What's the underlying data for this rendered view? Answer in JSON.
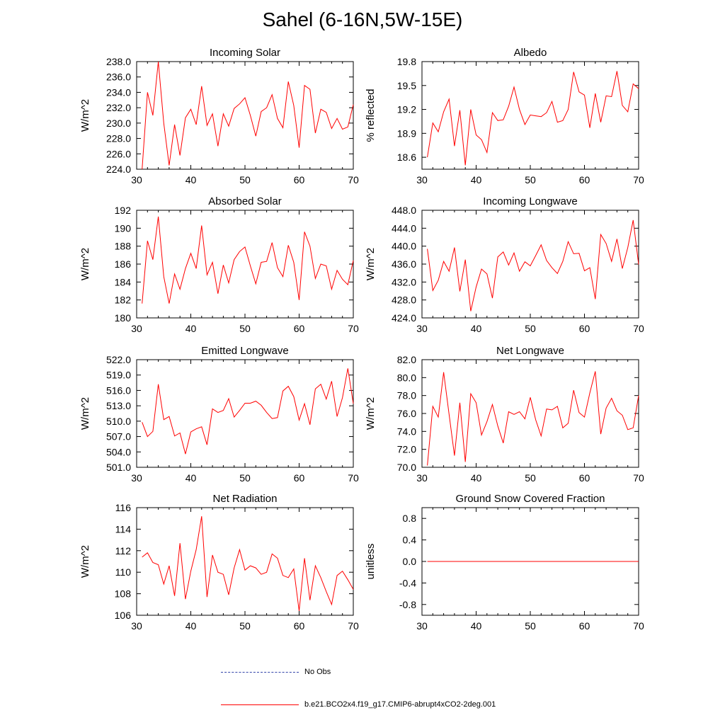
{
  "figure": {
    "title": "Sahel (6-16N,5W-15E)"
  },
  "colors": {
    "series": "#ff0000",
    "obs": "#3344aa",
    "axis": "#000000"
  },
  "legend": {
    "obs_label": "No Obs",
    "model_label": "b.e21.BCO2x4.f19_g17.CMIP6-abrupt4xCO2-2deg.001"
  },
  "chart_data": [
    {
      "type": "line",
      "title": "Incoming Solar",
      "ylabel": "W/m^2",
      "xlim": [
        30,
        70
      ],
      "ylim": [
        224,
        238
      ],
      "xticks": [
        30,
        40,
        50,
        60,
        70
      ],
      "yticks": [
        "224.0",
        "226.0",
        "228.0",
        "230.0",
        "232.0",
        "234.0",
        "236.0",
        "238.0"
      ],
      "x": [
        31,
        32,
        33,
        34,
        35,
        36,
        37,
        38,
        39,
        40,
        41,
        42,
        43,
        44,
        45,
        46,
        47,
        48,
        49,
        50,
        51,
        52,
        53,
        54,
        55,
        56,
        57,
        58,
        59,
        60,
        61,
        62,
        63,
        64,
        65,
        66,
        67,
        68,
        69,
        70
      ],
      "values": [
        224.0,
        234.0,
        231.0,
        238.0,
        230.0,
        224.5,
        229.8,
        225.8,
        230.7,
        231.8,
        229.8,
        234.8,
        229.7,
        231.2,
        227.0,
        231.2,
        229.6,
        231.9,
        232.5,
        233.3,
        231.0,
        228.3,
        231.5,
        232.0,
        233.7,
        230.6,
        229.4,
        235.4,
        232.3,
        226.8,
        234.9,
        234.4,
        228.7,
        231.8,
        231.4,
        229.3,
        230.6,
        229.2,
        229.5,
        232.4
      ],
      "series_name": "b.e21.BCO2x4.f19_g17.CMIP6-abrupt4xCO2-2deg.001"
    },
    {
      "type": "line",
      "title": "Albedo",
      "ylabel": "% reflected",
      "xlim": [
        30,
        70
      ],
      "ylim": [
        18.45,
        19.8
      ],
      "xticks": [
        30,
        40,
        50,
        60,
        70
      ],
      "yticks": [
        "18.6",
        "18.9",
        "19.2",
        "19.5",
        "19.8"
      ],
      "x": [
        31,
        32,
        33,
        34,
        35,
        36,
        37,
        38,
        39,
        40,
        41,
        42,
        43,
        44,
        45,
        46,
        47,
        48,
        49,
        50,
        51,
        52,
        53,
        54,
        55,
        56,
        57,
        58,
        59,
        60,
        61,
        62,
        63,
        64,
        65,
        66,
        67,
        68,
        69,
        70
      ],
      "values": [
        18.6,
        19.03,
        18.92,
        19.17,
        19.33,
        18.74,
        19.19,
        18.5,
        19.2,
        18.88,
        18.82,
        18.66,
        19.16,
        19.06,
        19.07,
        19.24,
        19.48,
        19.2,
        19.01,
        19.13,
        19.12,
        19.11,
        19.16,
        19.3,
        19.04,
        19.06,
        19.2,
        19.67,
        19.42,
        19.38,
        18.97,
        19.4,
        19.04,
        19.37,
        19.36,
        19.68,
        19.25,
        19.17,
        19.52,
        19.46
      ],
      "series_name": "b.e21.BCO2x4.f19_g17.CMIP6-abrupt4xCO2-2deg.001"
    },
    {
      "type": "line",
      "title": "Absorbed Solar",
      "ylabel": "W/m^2",
      "xlim": [
        30,
        70
      ],
      "ylim": [
        180,
        192
      ],
      "xticks": [
        30,
        40,
        50,
        60,
        70
      ],
      "yticks": [
        "180",
        "182",
        "184",
        "186",
        "188",
        "190",
        "192"
      ],
      "x": [
        31,
        32,
        33,
        34,
        35,
        36,
        37,
        38,
        39,
        40,
        41,
        42,
        43,
        44,
        45,
        46,
        47,
        48,
        49,
        50,
        51,
        52,
        53,
        54,
        55,
        56,
        57,
        58,
        59,
        60,
        61,
        62,
        63,
        64,
        65,
        66,
        67,
        68,
        69,
        70
      ],
      "values": [
        181.6,
        188.6,
        186.5,
        191.3,
        184.6,
        181.6,
        184.9,
        183.2,
        185.5,
        187.2,
        185.5,
        190.3,
        184.8,
        186.2,
        182.7,
        185.9,
        183.9,
        186.5,
        187.4,
        187.9,
        185.8,
        183.8,
        186.2,
        186.3,
        188.4,
        185.6,
        184.6,
        188.1,
        186.2,
        182.0,
        189.6,
        188.0,
        184.4,
        186.0,
        185.8,
        183.2,
        185.3,
        184.3,
        183.7,
        186.4
      ],
      "series_name": "b.e21.BCO2x4.f19_g17.CMIP6-abrupt4xCO2-2deg.001"
    },
    {
      "type": "line",
      "title": "Incoming Longwave",
      "ylabel": "W/m^2",
      "xlim": [
        30,
        70
      ],
      "ylim": [
        424,
        448
      ],
      "xticks": [
        30,
        40,
        50,
        60,
        70
      ],
      "yticks": [
        "424.0",
        "428.0",
        "432.0",
        "436.0",
        "440.0",
        "444.0",
        "448.0"
      ],
      "x": [
        31,
        32,
        33,
        34,
        35,
        36,
        37,
        38,
        39,
        40,
        41,
        42,
        43,
        44,
        45,
        46,
        47,
        48,
        49,
        50,
        51,
        52,
        53,
        54,
        55,
        56,
        57,
        58,
        59,
        60,
        61,
        62,
        63,
        64,
        65,
        66,
        67,
        68,
        69,
        70
      ],
      "values": [
        439.4,
        430.1,
        432.4,
        436.6,
        434.4,
        439.7,
        429.9,
        437.0,
        425.5,
        430.9,
        434.9,
        433.8,
        428.4,
        437.6,
        438.7,
        435.8,
        438.5,
        434.4,
        436.5,
        435.6,
        437.9,
        440.3,
        436.8,
        435.2,
        433.9,
        436.6,
        441.0,
        438.3,
        438.4,
        434.5,
        435.2,
        428.2,
        442.6,
        440.6,
        436.6,
        441.6,
        435.0,
        439.7,
        445.8,
        435.9
      ],
      "series_name": "b.e21.BCO2x4.f19_g17.CMIP6-abrupt4xCO2-2deg.001"
    },
    {
      "type": "line",
      "title": "Emitted Longwave",
      "ylabel": "W/m^2",
      "xlim": [
        30,
        70
      ],
      "ylim": [
        501,
        522
      ],
      "xticks": [
        30,
        40,
        50,
        60,
        70
      ],
      "yticks": [
        "501.0",
        "504.0",
        "507.0",
        "510.0",
        "513.0",
        "516.0",
        "519.0",
        "522.0"
      ],
      "x": [
        31,
        32,
        33,
        34,
        35,
        36,
        37,
        38,
        39,
        40,
        41,
        42,
        43,
        44,
        45,
        46,
        47,
        48,
        49,
        50,
        51,
        52,
        53,
        54,
        55,
        56,
        57,
        58,
        59,
        60,
        61,
        62,
        63,
        64,
        65,
        66,
        67,
        68,
        69,
        70
      ],
      "values": [
        509.8,
        507.0,
        508.0,
        517.2,
        510.3,
        510.9,
        507.1,
        507.7,
        503.6,
        507.9,
        508.5,
        508.9,
        505.4,
        512.4,
        511.7,
        512.1,
        514.4,
        510.8,
        512.1,
        513.5,
        513.5,
        513.9,
        513.1,
        511.7,
        510.5,
        510.7,
        515.9,
        516.8,
        514.8,
        510.2,
        513.4,
        509.3,
        516.3,
        517.2,
        514.3,
        517.8,
        510.9,
        514.6,
        520.3,
        513.4
      ],
      "series_name": "b.e21.BCO2x4.f19_g17.CMIP6-abrupt4xCO2-2deg.001"
    },
    {
      "type": "line",
      "title": "Net Longwave",
      "ylabel": "W/m^2",
      "xlim": [
        30,
        70
      ],
      "ylim": [
        70,
        82
      ],
      "xticks": [
        30,
        40,
        50,
        60,
        70
      ],
      "yticks": [
        "70.0",
        "72.0",
        "74.0",
        "76.0",
        "78.0",
        "80.0",
        "82.0"
      ],
      "x": [
        31,
        32,
        33,
        34,
        35,
        36,
        37,
        38,
        39,
        40,
        41,
        42,
        43,
        44,
        45,
        46,
        47,
        48,
        49,
        50,
        51,
        52,
        53,
        54,
        55,
        56,
        57,
        58,
        59,
        60,
        61,
        62,
        63,
        64,
        65,
        66,
        67,
        68,
        69,
        70
      ],
      "values": [
        70.2,
        76.8,
        75.6,
        80.6,
        75.9,
        71.3,
        77.2,
        70.6,
        78.2,
        77.2,
        73.6,
        75.1,
        77.0,
        74.6,
        72.7,
        76.2,
        75.9,
        76.2,
        75.4,
        77.8,
        75.3,
        73.5,
        76.5,
        76.4,
        76.8,
        74.4,
        74.9,
        78.6,
        76.1,
        75.6,
        78.3,
        80.7,
        73.7,
        76.6,
        77.7,
        76.3,
        75.8,
        74.2,
        74.4,
        78.0
      ],
      "series_name": "b.e21.BCO2x4.f19_g17.CMIP6-abrupt4xCO2-2deg.001"
    },
    {
      "type": "line",
      "title": "Net Radiation",
      "ylabel": "W/m^2",
      "xlim": [
        30,
        70
      ],
      "ylim": [
        106,
        116
      ],
      "xticks": [
        30,
        40,
        50,
        60,
        70
      ],
      "yticks": [
        "106",
        "108",
        "110",
        "112",
        "114",
        "116"
      ],
      "x": [
        31,
        32,
        33,
        34,
        35,
        36,
        37,
        38,
        39,
        40,
        41,
        42,
        43,
        44,
        45,
        46,
        47,
        48,
        49,
        50,
        51,
        52,
        53,
        54,
        55,
        56,
        57,
        58,
        59,
        60,
        61,
        62,
        63,
        64,
        65,
        66,
        67,
        68,
        69,
        70
      ],
      "values": [
        111.4,
        111.8,
        110.9,
        110.7,
        108.9,
        110.6,
        107.8,
        112.7,
        107.5,
        110.1,
        112.1,
        115.2,
        107.7,
        111.6,
        110.0,
        109.8,
        107.9,
        110.4,
        112.1,
        110.2,
        110.6,
        110.4,
        109.8,
        110.0,
        111.7,
        111.3,
        109.7,
        109.5,
        110.3,
        106.4,
        111.3,
        107.4,
        110.6,
        109.5,
        108.2,
        107.0,
        109.7,
        110.1,
        109.3,
        108.4
      ],
      "series_name": "b.e21.BCO2x4.f19_g17.CMIP6-abrupt4xCO2-2deg.001"
    },
    {
      "type": "line",
      "title": "Ground Snow Covered Fraction",
      "ylabel": "unitless",
      "xlim": [
        30,
        70
      ],
      "ylim": [
        -1,
        1
      ],
      "xticks": [
        30,
        40,
        50,
        60,
        70
      ],
      "yticks": [
        "-0.8",
        "-0.4",
        "0.0",
        "0.4",
        "0.8"
      ],
      "x": [
        31,
        32,
        33,
        34,
        35,
        36,
        37,
        38,
        39,
        40,
        41,
        42,
        43,
        44,
        45,
        46,
        47,
        48,
        49,
        50,
        51,
        52,
        53,
        54,
        55,
        56,
        57,
        58,
        59,
        60,
        61,
        62,
        63,
        64,
        65,
        66,
        67,
        68,
        69,
        70
      ],
      "values": [
        0,
        0,
        0,
        0,
        0,
        0,
        0,
        0,
        0,
        0,
        0,
        0,
        0,
        0,
        0,
        0,
        0,
        0,
        0,
        0,
        0,
        0,
        0,
        0,
        0,
        0,
        0,
        0,
        0,
        0,
        0,
        0,
        0,
        0,
        0,
        0,
        0,
        0,
        0,
        0
      ],
      "series_name": "b.e21.BCO2x4.f19_g17.CMIP6-abrupt4xCO2-2deg.001"
    }
  ]
}
